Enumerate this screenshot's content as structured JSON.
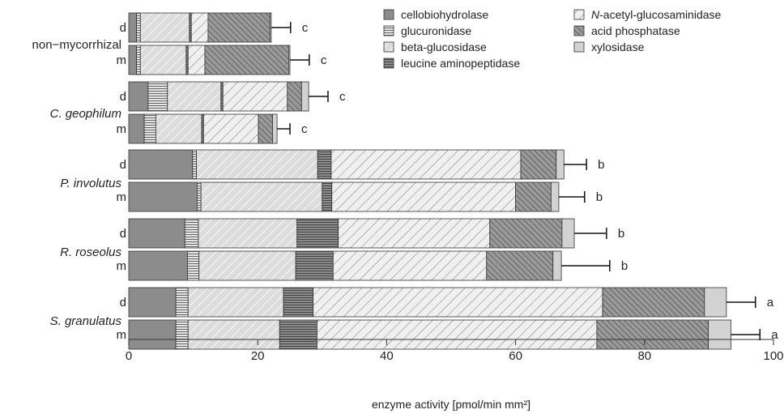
{
  "chart_data": {
    "type": "bar",
    "orientation": "horizontal",
    "stacked": true,
    "title": "",
    "xlabel": "enzyme activity [pmol/min mm²]",
    "ylabel": "",
    "xlim": [
      0,
      100
    ],
    "xticks": [
      "0",
      "20",
      "40",
      "60",
      "80",
      "100"
    ],
    "grid": false,
    "legend_position": "top-right",
    "series": [
      {
        "name": "cellobiohydrolase",
        "color": "#8c8c8c",
        "pattern": "solid"
      },
      {
        "name": "glucuronidase",
        "color": "#e6e6e6",
        "pattern": "horizontal-lines"
      },
      {
        "name": "beta-glucosidase",
        "color": "#dcdcdc",
        "pattern": "diagonal-lines-light"
      },
      {
        "name": "leucine aminopeptidase",
        "color": "#8c8c8c",
        "pattern": "horizontal-lines-dense"
      },
      {
        "name_italic": "N",
        "name_rest": "-acetyl-glucosaminidase",
        "color": "#eeeeee",
        "pattern": "diagonal-lines-sparse"
      },
      {
        "name": "acid phosphatase",
        "color": "#9a9a9a",
        "pattern": "diagonal-lines-dark"
      },
      {
        "name": "xylosidase",
        "color": "#d2d2d2",
        "pattern": "solid-light"
      }
    ],
    "groups": [
      {
        "label": "non−mycorrhizal",
        "italic": false,
        "bars": [
          {
            "label": "d",
            "values": [
              1.2,
              0.6,
              7.6,
              0.3,
              2.6,
              9.6,
              0.2
            ],
            "error": 3.0,
            "significance": "c"
          },
          {
            "label": "m",
            "values": [
              1.2,
              0.6,
              7.1,
              0.3,
              2.6,
              13.0,
              0.2
            ],
            "error": 3.0,
            "significance": "c"
          }
        ]
      },
      {
        "label": "C. geophilum",
        "italic": true,
        "bars": [
          {
            "label": "d",
            "values": [
              3.0,
              3.0,
              8.3,
              0.3,
              10.0,
              2.2,
              1.1
            ],
            "error": 3.0,
            "significance": "c"
          },
          {
            "label": "m",
            "values": [
              2.4,
              1.8,
              7.1,
              0.3,
              8.5,
              2.2,
              0.7
            ],
            "error": 2.0,
            "significance": "c"
          }
        ]
      },
      {
        "label": "P. involutus",
        "italic": true,
        "bars": [
          {
            "label": "d",
            "values": [
              9.9,
              0.6,
              18.8,
              2.1,
              29.4,
              5.5,
              1.2
            ],
            "error": 3.5,
            "significance": "b"
          },
          {
            "label": "m",
            "values": [
              10.6,
              0.6,
              18.8,
              1.5,
              28.5,
              5.5,
              1.2
            ],
            "error": 4.0,
            "significance": "b"
          }
        ]
      },
      {
        "label": "R. roseolus",
        "italic": true,
        "bars": [
          {
            "label": "d",
            "values": [
              8.7,
              2.1,
              15.3,
              6.4,
              23.5,
              11.2,
              1.9
            ],
            "error": 5.0,
            "significance": "b"
          },
          {
            "label": "m",
            "values": [
              9.1,
              1.8,
              15.0,
              5.8,
              23.8,
              10.3,
              1.3
            ],
            "error": 7.5,
            "significance": "b"
          }
        ]
      },
      {
        "label": "S. granulatus",
        "italic": true,
        "bars": [
          {
            "label": "d",
            "values": [
              7.3,
              1.9,
              14.8,
              4.6,
              44.9,
              15.8,
              3.4
            ],
            "error": 4.5,
            "significance": "a"
          },
          {
            "label": "m",
            "values": [
              7.3,
              1.9,
              14.2,
              5.8,
              43.4,
              17.3,
              3.5
            ],
            "error": 4.5,
            "significance": "a"
          }
        ]
      }
    ]
  }
}
